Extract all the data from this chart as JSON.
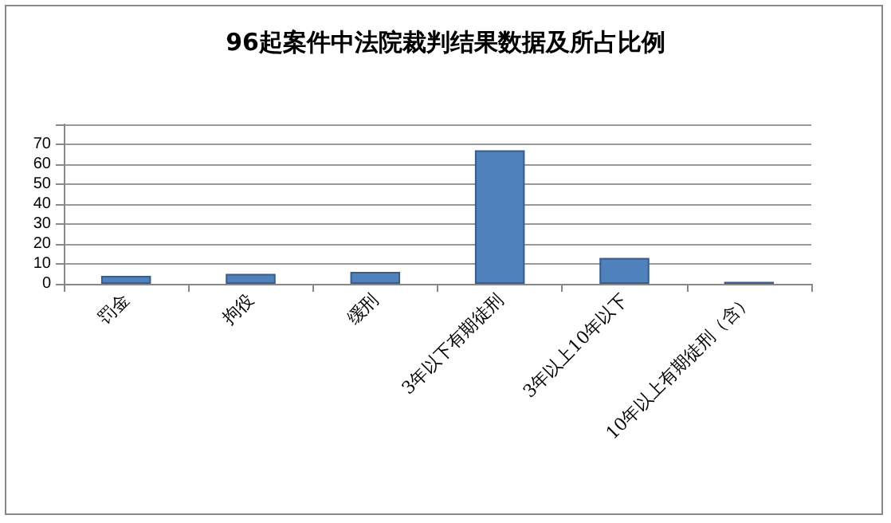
{
  "chart_data": {
    "type": "bar",
    "title": "96起案件中法院裁判结果数据及所占比例",
    "categories": [
      "罚金",
      "拘役",
      "缓刑",
      "3年以下有期徒刑",
      "3年以上10年以下",
      "10年以上有期徒刑（含）"
    ],
    "values": [
      4,
      5,
      6,
      67,
      13,
      1
    ],
    "color": "#4f81bd",
    "ylim": [
      0,
      80
    ],
    "yticks": [
      0,
      10,
      20,
      30,
      40,
      50,
      60,
      70,
      {
        "value": 80,
        "label": null
      }
    ],
    "grid": true
  }
}
